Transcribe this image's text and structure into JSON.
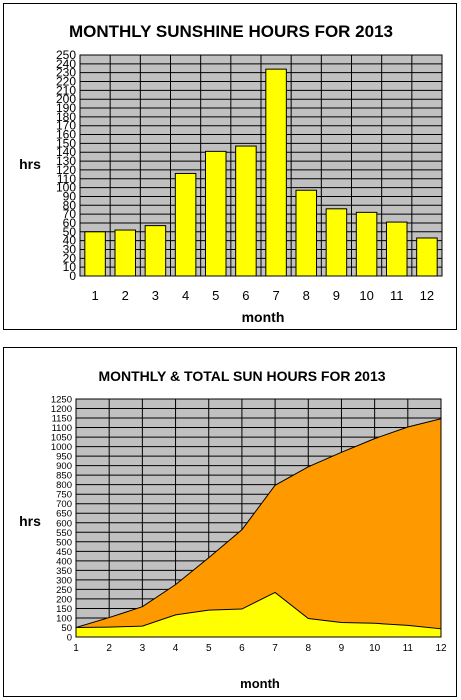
{
  "chart_data": [
    {
      "type": "bar",
      "title": "MONTHLY SUNSHINE HOURS FOR 2013",
      "xlabel": "month",
      "ylabel": "hrs",
      "categories": [
        "1",
        "2",
        "3",
        "4",
        "5",
        "6",
        "7",
        "8",
        "9",
        "10",
        "11",
        "12"
      ],
      "values": [
        50,
        52,
        57,
        116,
        141,
        147,
        234,
        97,
        76,
        72,
        61,
        43
      ],
      "ylim": [
        0,
        250
      ],
      "ystep": 10,
      "grid": true,
      "colors": {
        "bar": "#ffff00",
        "bar_edge": "#000000",
        "plot_bg": "#c0c0c0",
        "grid": "#000000"
      }
    },
    {
      "type": "area",
      "title": "MONTHLY & TOTAL SUN HOURS FOR 2013",
      "xlabel": "month",
      "ylabel": "hrs",
      "x": [
        "1",
        "2",
        "3",
        "4",
        "5",
        "6",
        "7",
        "8",
        "9",
        "10",
        "11",
        "12"
      ],
      "series": [
        {
          "values": [
            50,
            102,
            159,
            275,
            416,
            563,
            797,
            894,
            970,
            1042,
            1103,
            1146
          ],
          "color": "#ff9900"
        },
        {
          "values": [
            50,
            52,
            57,
            116,
            141,
            147,
            234,
            97,
            76,
            72,
            61,
            43
          ],
          "color": "#ffff00"
        }
      ],
      "ylim": [
        0,
        1250
      ],
      "ystep": 50,
      "grid": true,
      "colors": {
        "plot_bg": "#c0c0c0",
        "grid": "#000000"
      }
    }
  ]
}
